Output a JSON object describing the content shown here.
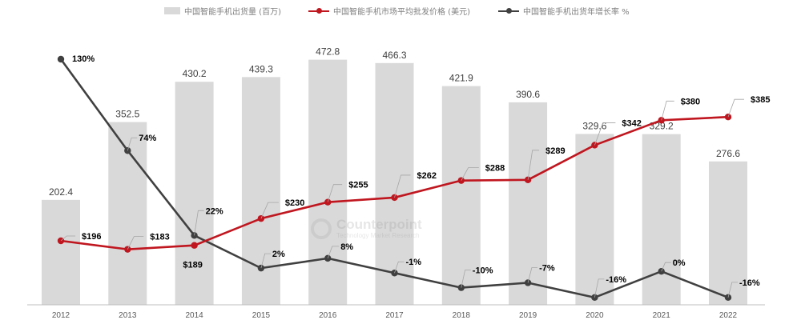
{
  "legend": {
    "bar_label": "中国智能手机出货量 (百万)",
    "red_label": "中国智能手机市场平均批发价格 (美元)",
    "dark_label": "中国智能手机出货年增长率 %"
  },
  "watermark": {
    "name": "Counterpoint",
    "sub": "Technology Market Research"
  },
  "colors": {
    "bar": "#d9d9d9",
    "red": "#c0161f",
    "dark": "#404040",
    "label": "#000000",
    "axis_text": "#595959"
  },
  "chart_data": {
    "type": "bar",
    "categories": [
      "2012",
      "2013",
      "2014",
      "2015",
      "2016",
      "2017",
      "2018",
      "2019",
      "2020",
      "2021",
      "2022"
    ],
    "series": [
      {
        "name": "中国智能手机出货量 (百万)",
        "type": "bar",
        "values": [
          202.4,
          352.5,
          430.2,
          439.3,
          472.8,
          466.3,
          421.9,
          390.6,
          329.6,
          329.2,
          276.6
        ],
        "labels": [
          "202.4",
          "352.5",
          "430.2",
          "439.3",
          "472.8",
          "466.3",
          "421.9",
          "390.6",
          "329.6",
          "329.2",
          "276.6"
        ]
      },
      {
        "name": "中国智能手机市场平均批发价格 (美元)",
        "type": "line",
        "values": [
          196,
          183,
          189,
          230,
          255,
          262,
          288,
          289,
          342,
          380,
          385
        ],
        "labels": [
          "$196",
          "$183",
          "$189",
          "$230",
          "$255",
          "$262",
          "$288",
          "$289",
          "$342",
          "$380",
          "$385"
        ]
      },
      {
        "name": "中国智能手机出货年增长率 %",
        "type": "line",
        "values": [
          130,
          74,
          22,
          2,
          8,
          -1,
          -10,
          -7,
          -16,
          0,
          -16
        ],
        "labels": [
          "130%",
          "74%",
          "22%",
          "2%",
          "8%",
          "-1%",
          "-10%",
          "-7%",
          "-16%",
          "0%",
          "-16%"
        ]
      }
    ],
    "title": "",
    "xlabel": "",
    "ylabel": "",
    "grid": false,
    "legend_position": "top"
  }
}
